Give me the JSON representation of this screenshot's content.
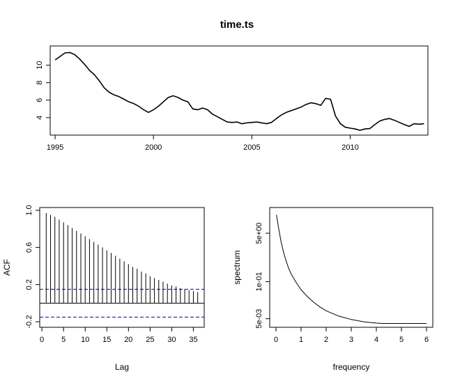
{
  "chart_data": [
    {
      "type": "line",
      "title": "time.ts",
      "xlabel": "",
      "ylabel": "",
      "xlim": [
        1994.75,
        2013.95
      ],
      "ylim": [
        2.0,
        12.2
      ],
      "x_ticks": [
        1995,
        2000,
        2005,
        2010
      ],
      "y_ticks": [
        4,
        6,
        8,
        10
      ],
      "x_tick_labels": [
        "1995",
        "2000",
        "2005",
        "2010"
      ],
      "y_tick_labels": [
        "4",
        "6",
        "8",
        "10"
      ],
      "series": [
        {
          "points": [
            [
              1995.0,
              10.6
            ],
            [
              1995.25,
              11.0
            ],
            [
              1995.5,
              11.4
            ],
            [
              1995.75,
              11.45
            ],
            [
              1996.0,
              11.2
            ],
            [
              1996.25,
              10.7
            ],
            [
              1996.5,
              10.1
            ],
            [
              1996.75,
              9.4
            ],
            [
              1997.0,
              8.9
            ],
            [
              1997.25,
              8.2
            ],
            [
              1997.5,
              7.4
            ],
            [
              1997.75,
              6.9
            ],
            [
              1998.0,
              6.6
            ],
            [
              1998.25,
              6.4
            ],
            [
              1998.5,
              6.1
            ],
            [
              1998.75,
              5.8
            ],
            [
              1999.0,
              5.6
            ],
            [
              1999.25,
              5.3
            ],
            [
              1999.5,
              4.9
            ],
            [
              1999.75,
              4.6
            ],
            [
              2000.0,
              4.9
            ],
            [
              2000.25,
              5.3
            ],
            [
              2000.5,
              5.8
            ],
            [
              2000.75,
              6.3
            ],
            [
              2001.0,
              6.5
            ],
            [
              2001.25,
              6.3
            ],
            [
              2001.5,
              6.0
            ],
            [
              2001.75,
              5.8
            ],
            [
              2002.0,
              5.0
            ],
            [
              2002.25,
              4.9
            ],
            [
              2002.5,
              5.1
            ],
            [
              2002.75,
              4.9
            ],
            [
              2003.0,
              4.4
            ],
            [
              2003.25,
              4.1
            ],
            [
              2003.5,
              3.8
            ],
            [
              2003.75,
              3.5
            ],
            [
              2004.0,
              3.45
            ],
            [
              2004.25,
              3.5
            ],
            [
              2004.5,
              3.3
            ],
            [
              2004.75,
              3.4
            ],
            [
              2005.0,
              3.45
            ],
            [
              2005.25,
              3.5
            ],
            [
              2005.5,
              3.4
            ],
            [
              2005.75,
              3.3
            ],
            [
              2006.0,
              3.45
            ],
            [
              2006.25,
              3.9
            ],
            [
              2006.5,
              4.3
            ],
            [
              2006.75,
              4.6
            ],
            [
              2007.0,
              4.8
            ],
            [
              2007.25,
              5.0
            ],
            [
              2007.5,
              5.2
            ],
            [
              2007.75,
              5.5
            ],
            [
              2008.0,
              5.7
            ],
            [
              2008.25,
              5.6
            ],
            [
              2008.5,
              5.4
            ],
            [
              2008.75,
              6.2
            ],
            [
              2009.0,
              6.1
            ],
            [
              2009.25,
              4.2
            ],
            [
              2009.5,
              3.3
            ],
            [
              2009.75,
              2.9
            ],
            [
              2010.0,
              2.8
            ],
            [
              2010.25,
              2.7
            ],
            [
              2010.5,
              2.55
            ],
            [
              2010.75,
              2.7
            ],
            [
              2011.0,
              2.75
            ],
            [
              2011.25,
              3.2
            ],
            [
              2011.5,
              3.6
            ],
            [
              2011.75,
              3.8
            ],
            [
              2012.0,
              3.9
            ],
            [
              2012.25,
              3.7
            ],
            [
              2012.5,
              3.45
            ],
            [
              2012.75,
              3.2
            ],
            [
              2013.0,
              3.0
            ],
            [
              2013.25,
              3.3
            ],
            [
              2013.5,
              3.25
            ],
            [
              2013.75,
              3.3
            ]
          ]
        }
      ]
    },
    {
      "type": "bar",
      "title": "",
      "xlabel": "Lag",
      "ylabel": "ACF",
      "xlim": [
        -0.5,
        37.5
      ],
      "ylim": [
        -0.26,
        1.03
      ],
      "x_ticks": [
        0,
        5,
        10,
        15,
        20,
        25,
        30,
        35
      ],
      "y_ticks": [
        -0.2,
        0.2,
        0.6,
        1.0
      ],
      "x_tick_labels": [
        "0",
        "5",
        "10",
        "15",
        "20",
        "25",
        "30",
        "35"
      ],
      "y_tick_labels": [
        "-0.2",
        "0.2",
        "0.6",
        "1.0"
      ],
      "zero_line": 0,
      "confidence_band": [
        -0.15,
        0.15
      ],
      "lags": [
        1,
        2,
        3,
        4,
        5,
        6,
        7,
        8,
        9,
        10,
        11,
        12,
        13,
        14,
        15,
        16,
        17,
        18,
        19,
        20,
        21,
        22,
        23,
        24,
        25,
        26,
        27,
        28,
        29,
        30,
        31,
        32,
        33,
        34,
        35,
        36
      ],
      "values": [
        0.97,
        0.95,
        0.93,
        0.9,
        0.87,
        0.84,
        0.81,
        0.78,
        0.75,
        0.72,
        0.69,
        0.66,
        0.63,
        0.6,
        0.57,
        0.54,
        0.51,
        0.48,
        0.45,
        0.42,
        0.39,
        0.37,
        0.34,
        0.32,
        0.29,
        0.27,
        0.25,
        0.23,
        0.21,
        0.19,
        0.18,
        0.16,
        0.15,
        0.14,
        0.13,
        0.12
      ]
    },
    {
      "type": "line",
      "title": "",
      "xlabel": "frequency",
      "ylabel": "spectrum",
      "xlim": [
        -0.25,
        6.25
      ],
      "ylim": [
        0.0025,
        40
      ],
      "log_y": true,
      "x_ticks": [
        0,
        1,
        2,
        3,
        4,
        5,
        6
      ],
      "y_ticks": [
        0.005,
        0.1,
        5
      ],
      "x_tick_labels": [
        "0",
        "1",
        "2",
        "3",
        "4",
        "5",
        "6"
      ],
      "y_tick_labels": [
        "5e-03",
        "1e-01",
        "5e+00"
      ],
      "series": [
        {
          "points": [
            [
              0.02,
              22
            ],
            [
              0.05,
              15
            ],
            [
              0.1,
              8
            ],
            [
              0.2,
              2.6
            ],
            [
              0.3,
              1.1
            ],
            [
              0.4,
              0.55
            ],
            [
              0.5,
              0.3
            ],
            [
              0.6,
              0.19
            ],
            [
              0.8,
              0.095
            ],
            [
              1.0,
              0.052
            ],
            [
              1.25,
              0.03
            ],
            [
              1.5,
              0.019
            ],
            [
              1.75,
              0.013
            ],
            [
              2.0,
              0.0095
            ],
            [
              2.5,
              0.0062
            ],
            [
              3.0,
              0.0047
            ],
            [
              3.5,
              0.0039
            ],
            [
              4.0,
              0.0035
            ],
            [
              4.3,
              0.0034
            ],
            [
              5.0,
              0.0034
            ],
            [
              6.0,
              0.0034
            ]
          ]
        }
      ]
    }
  ]
}
